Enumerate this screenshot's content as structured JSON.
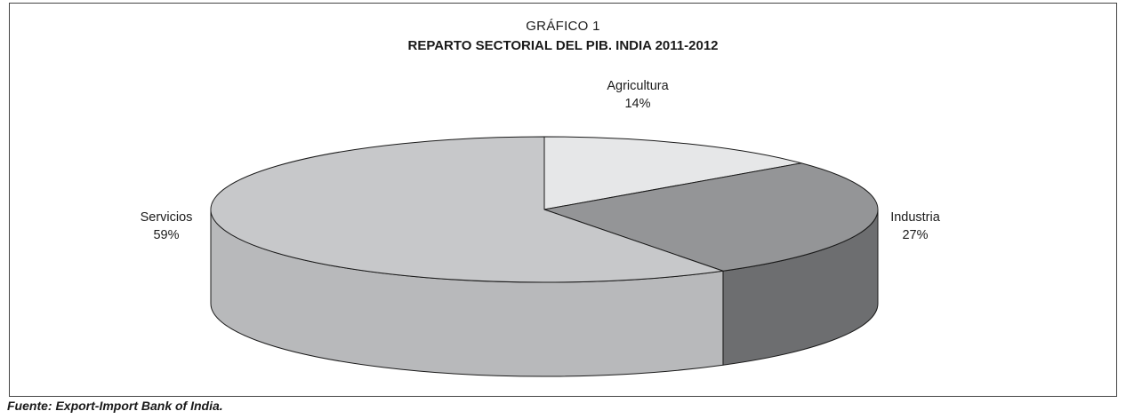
{
  "chart_data": {
    "type": "pie",
    "kicker": "GRÁFICO 1",
    "title": "REPARTO SECTORIAL DEL PIB. INDIA 2011-2012",
    "slices": [
      {
        "label": "Agricultura",
        "value": 14,
        "value_label": "14%",
        "color": "#e6e7e8",
        "side_color": "#d0d1d3"
      },
      {
        "label": "Industria",
        "value": 27,
        "value_label": "27%",
        "color": "#949597",
        "side_color": "#6d6e70"
      },
      {
        "label": "Servicios",
        "value": 59,
        "value_label": "59%",
        "color": "#c7c8ca",
        "side_color": "#b8b9bb"
      }
    ],
    "style": "3d"
  },
  "source": "Fuente: Export-Import Bank of India."
}
